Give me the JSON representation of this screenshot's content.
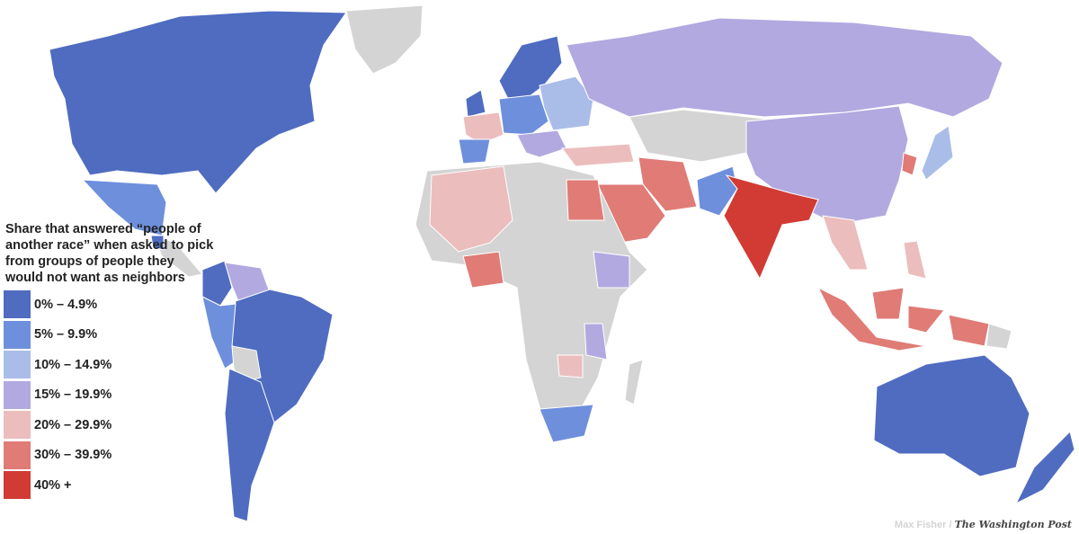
{
  "legend": {
    "title": "Share that answered “people of another race” when asked to pick from groups of people they would not want as neighbors",
    "bins": [
      {
        "label": "0% – 4.9%",
        "color": "#4f6cc1"
      },
      {
        "label": "5% – 9.9%",
        "color": "#6e8fdc"
      },
      {
        "label": "10% – 14.9%",
        "color": "#aabde9"
      },
      {
        "label": "15% – 19.9%",
        "color": "#b2a9e0"
      },
      {
        "label": "20% – 29.9%",
        "color": "#ecbdbd"
      },
      {
        "label": "30% – 39.9%",
        "color": "#e07b76"
      },
      {
        "label": "40% +",
        "color": "#d13b34"
      }
    ],
    "no_data_color": "#d4d4d4"
  },
  "credit": {
    "author": "Max Fisher /",
    "publisher": "The Washington Post"
  }
}
